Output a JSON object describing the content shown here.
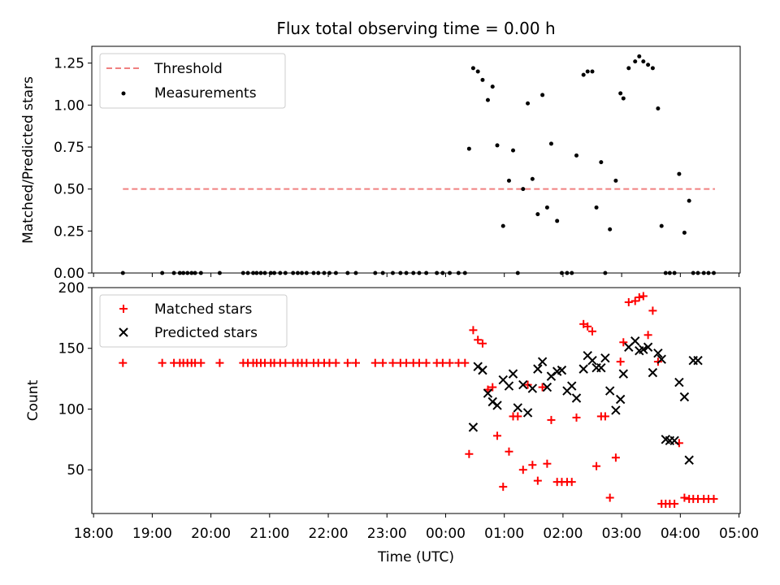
{
  "chart_data": [
    {
      "type": "scatter",
      "title": "Flux total observing time = 0.00 h",
      "xlabel": "",
      "ylabel": "Matched/Predicted stars",
      "xlim_hours": [
        17.97,
        29.02
      ],
      "ylim": [
        0,
        1.35
      ],
      "x_tick_labels": [
        "18:00",
        "19:00",
        "20:00",
        "21:00",
        "22:00",
        "23:00",
        "00:00",
        "01:00",
        "02:00",
        "03:00",
        "04:00",
        "05:00"
      ],
      "y_tick_labels": [
        "0.00",
        "0.25",
        "0.50",
        "0.75",
        "1.00",
        "1.25"
      ],
      "y_ticks": [
        0,
        0.25,
        0.5,
        0.75,
        1.0,
        1.25
      ],
      "legend": {
        "position": "top-left",
        "entries": [
          "Threshold",
          "Measurements"
        ]
      },
      "threshold": {
        "name": "Threshold",
        "value": 0.5,
        "x_range": [
          18.5,
          28.59
        ],
        "color": "#f08080"
      },
      "series": [
        {
          "name": "Measurements",
          "color": "#000000",
          "x": [
            18.5,
            19.17,
            19.37,
            19.47,
            19.53,
            19.6,
            19.67,
            19.73,
            19.83,
            20.15,
            20.55,
            20.63,
            20.72,
            20.78,
            20.85,
            20.92,
            21.02,
            21.08,
            21.18,
            21.27,
            21.4,
            21.48,
            21.55,
            21.63,
            21.75,
            21.83,
            21.93,
            22.02,
            22.13,
            22.33,
            22.47,
            22.8,
            22.93,
            23.1,
            23.23,
            23.33,
            23.45,
            23.55,
            23.67,
            23.85,
            23.95,
            24.07,
            24.22,
            24.33,
            24.4,
            24.47,
            24.55,
            24.63,
            24.72,
            24.8,
            24.88,
            24.98,
            25.08,
            25.15,
            25.23,
            25.32,
            25.4,
            25.48,
            25.57,
            25.65,
            25.73,
            25.8,
            25.9,
            25.98,
            26.07,
            26.15,
            26.23,
            26.35,
            26.42,
            26.5,
            26.57,
            26.65,
            26.72,
            26.8,
            26.9,
            26.98,
            27.03,
            27.12,
            27.23,
            27.3,
            27.37,
            27.45,
            27.53,
            27.62,
            27.68,
            27.75,
            27.82,
            27.9,
            27.98,
            28.07,
            28.15,
            28.22,
            28.3,
            28.4,
            28.48,
            28.57
          ],
          "y": [
            0,
            0,
            0,
            0,
            0,
            0,
            0,
            0,
            0,
            0,
            0,
            0,
            0,
            0,
            0,
            0,
            0,
            0,
            0,
            0,
            0,
            0,
            0,
            0,
            0,
            0,
            0,
            0,
            0,
            0,
            0,
            0,
            0,
            0,
            0,
            0,
            0,
            0,
            0,
            0,
            0,
            0,
            0,
            0,
            0.74,
            1.22,
            1.2,
            1.15,
            1.03,
            1.11,
            0.76,
            0.28,
            0.55,
            0.73,
            0,
            0.5,
            1.01,
            0.56,
            0.35,
            1.06,
            0.39,
            0.77,
            0.31,
            0,
            0,
            0,
            0.7,
            1.18,
            1.2,
            1.2,
            0.39,
            0.66,
            0,
            0.26,
            0.55,
            1.07,
            1.04,
            1.22,
            1.26,
            1.29,
            1.26,
            1.24,
            1.22,
            0.98,
            0.28,
            0,
            0,
            0,
            0.59,
            0.24,
            0.43,
            0,
            0,
            0,
            0,
            0
          ]
        }
      ]
    },
    {
      "type": "scatter",
      "title": "",
      "xlabel": "Time (UTC)",
      "ylabel": "Count",
      "xlim_hours": [
        17.97,
        29.02
      ],
      "ylim": [
        14,
        200
      ],
      "x_tick_labels": [
        "18:00",
        "19:00",
        "20:00",
        "21:00",
        "22:00",
        "23:00",
        "00:00",
        "01:00",
        "02:00",
        "03:00",
        "04:00",
        "05:00"
      ],
      "y_tick_labels": [
        "50",
        "100",
        "150",
        "200"
      ],
      "y_ticks": [
        50,
        100,
        150,
        200
      ],
      "legend": {
        "position": "top-left",
        "entries": [
          "Matched stars",
          "Predicted stars"
        ]
      },
      "series": [
        {
          "name": "Matched stars",
          "marker": "plus",
          "color": "#ff0000",
          "x": [
            18.5,
            19.17,
            19.37,
            19.47,
            19.53,
            19.6,
            19.67,
            19.73,
            19.83,
            20.15,
            20.55,
            20.63,
            20.72,
            20.78,
            20.85,
            20.92,
            21.02,
            21.08,
            21.18,
            21.27,
            21.4,
            21.48,
            21.55,
            21.63,
            21.75,
            21.83,
            21.93,
            22.02,
            22.13,
            22.33,
            22.47,
            22.8,
            22.93,
            23.1,
            23.23,
            23.33,
            23.45,
            23.55,
            23.67,
            23.85,
            23.95,
            24.07,
            24.22,
            24.33,
            24.4,
            24.47,
            24.55,
            24.63,
            24.72,
            24.8,
            24.88,
            24.98,
            25.08,
            25.15,
            25.23,
            25.32,
            25.4,
            25.48,
            25.57,
            25.65,
            25.73,
            25.8,
            25.9,
            25.98,
            26.07,
            26.15,
            26.23,
            26.35,
            26.42,
            26.5,
            26.57,
            26.65,
            26.72,
            26.8,
            26.9,
            26.98,
            27.03,
            27.12,
            27.23,
            27.3,
            27.37,
            27.45,
            27.53,
            27.62,
            27.68,
            27.75,
            27.82,
            27.9,
            27.98,
            28.07,
            28.15,
            28.22,
            28.3,
            28.4,
            28.48,
            28.57
          ],
          "y": [
            138,
            138,
            138,
            138,
            138,
            138,
            138,
            138,
            138,
            138,
            138,
            138,
            138,
            138,
            138,
            138,
            138,
            138,
            138,
            138,
            138,
            138,
            138,
            138,
            138,
            138,
            138,
            138,
            138,
            138,
            138,
            138,
            138,
            138,
            138,
            138,
            138,
            138,
            138,
            138,
            138,
            138,
            138,
            138,
            63,
            165,
            157,
            154,
            116,
            118,
            78,
            36,
            65,
            94,
            94,
            50,
            120,
            54,
            41,
            118,
            55,
            91,
            40,
            40,
            40,
            40,
            93,
            170,
            168,
            164,
            53,
            94,
            94,
            27,
            60,
            139,
            155,
            188,
            189,
            192,
            193,
            161,
            181,
            139,
            22,
            22,
            22,
            22,
            72,
            27,
            26,
            26,
            26,
            26,
            26,
            26
          ]
        },
        {
          "name": "Predicted stars",
          "marker": "x",
          "color": "#000000",
          "x": [
            24.47,
            24.55,
            24.63,
            24.72,
            24.8,
            24.88,
            24.98,
            25.08,
            25.15,
            25.23,
            25.32,
            25.4,
            25.48,
            25.57,
            25.65,
            25.73,
            25.8,
            25.9,
            25.98,
            26.07,
            26.15,
            26.23,
            26.35,
            26.42,
            26.5,
            26.57,
            26.65,
            26.72,
            26.8,
            26.9,
            26.98,
            27.03,
            27.12,
            27.23,
            27.3,
            27.37,
            27.45,
            27.53,
            27.62,
            27.68,
            27.75,
            27.82,
            27.9,
            27.98,
            28.07,
            28.15,
            28.22,
            28.3
          ],
          "y": [
            85,
            135,
            132,
            113,
            106,
            103,
            124,
            119,
            129,
            101,
            120,
            97,
            117,
            133,
            139,
            118,
            127,
            131,
            132,
            115,
            119,
            109,
            133,
            144,
            140,
            134,
            134,
            142,
            115,
            99,
            108,
            129,
            151,
            156,
            148,
            149,
            151,
            130,
            146,
            141,
            75,
            74,
            74,
            122,
            110,
            58,
            140,
            140
          ]
        }
      ]
    }
  ]
}
